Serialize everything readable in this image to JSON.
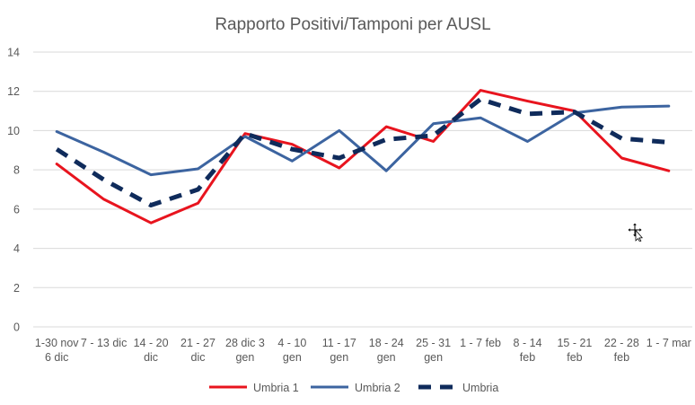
{
  "chart_data": {
    "type": "line",
    "title": "Rapporto Positivi/Tamponi per AUSL",
    "xlabel": "",
    "ylabel": "",
    "ylim": [
      0,
      14
    ],
    "yticks": [
      "0",
      "2",
      "4",
      "6",
      "8",
      "10",
      "12",
      "14"
    ],
    "grid": true,
    "legend_position": "bottom",
    "categories": [
      [
        "1-30 nov",
        "6 dic"
      ],
      [
        "7 - 13 dic"
      ],
      [
        "14 - 20",
        "dic"
      ],
      [
        "21 - 27",
        "dic"
      ],
      [
        "28 dic 3",
        "gen"
      ],
      [
        "4 - 10",
        "gen"
      ],
      [
        "11 - 17",
        "gen"
      ],
      [
        "18 - 24",
        "gen"
      ],
      [
        "25 - 31",
        "gen"
      ],
      [
        "1 - 7 feb"
      ],
      [
        "8 - 14",
        "feb"
      ],
      [
        "15 - 21",
        "feb"
      ],
      [
        "22 - 28",
        "feb"
      ],
      [
        "1 - 7 mar"
      ]
    ],
    "series": [
      {
        "name": "Umbria 1",
        "color": "#e8141e",
        "style": "solid",
        "values": [
          8.3,
          6.5,
          5.3,
          6.3,
          9.85,
          9.3,
          8.1,
          10.2,
          9.45,
          12.05,
          11.5,
          11.0,
          8.6,
          7.95
        ]
      },
      {
        "name": "Umbria 2",
        "color": "#3c64a0",
        "style": "solid",
        "values": [
          9.95,
          8.9,
          7.75,
          8.05,
          9.7,
          8.45,
          10.0,
          7.95,
          10.35,
          10.65,
          9.45,
          10.9,
          11.2,
          11.25
        ]
      },
      {
        "name": "Umbria",
        "color": "#0f2b5b",
        "style": "dashed",
        "values": [
          9.05,
          7.5,
          6.2,
          7.0,
          9.85,
          9.05,
          8.6,
          9.55,
          9.75,
          11.6,
          10.85,
          10.95,
          9.6,
          9.4
        ]
      }
    ]
  }
}
